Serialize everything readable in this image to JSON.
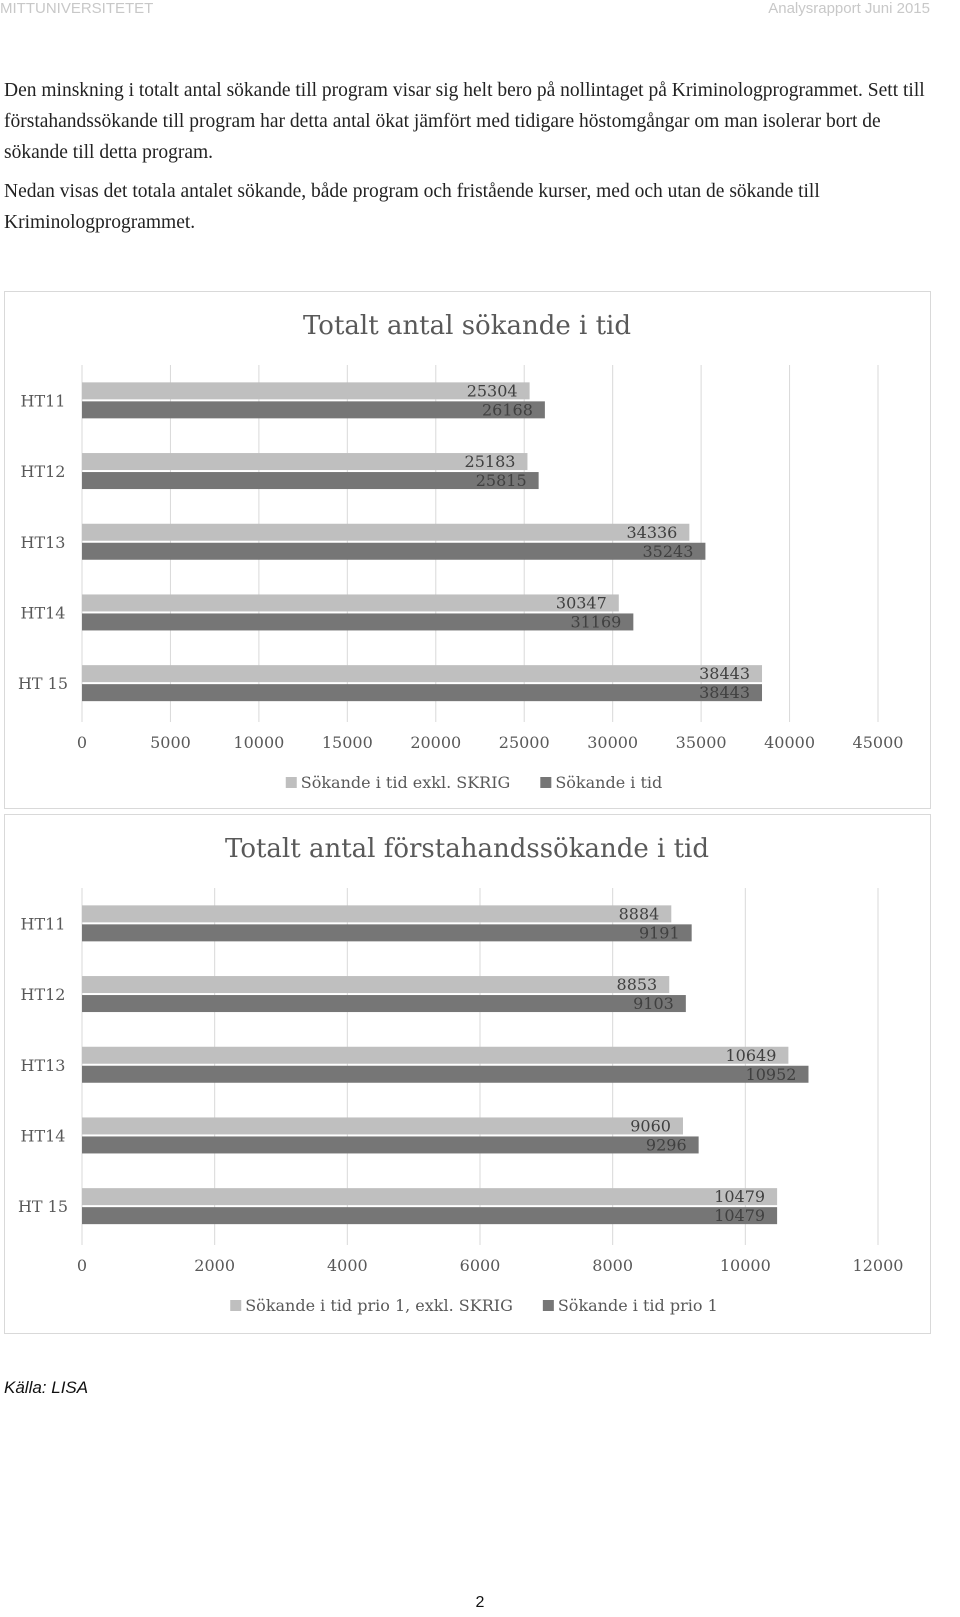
{
  "header": {
    "left": "MITTUNIVERSITETET",
    "right": "Analysrapport Juni 2015"
  },
  "body": {
    "paragraph1": "Den minskning i totalt antal sökande till program visar sig helt bero på nollintaget på Kriminologprogrammet. Sett till förstahandssökande till program har detta antal ökat jämfört med tidigare höstomgångar om man isolerar bort de sökande till detta program.",
    "paragraph2": "Nedan visas det totala antalet sökande, både program och fristående kurser, med och utan de sökande till Kriminologprogrammet."
  },
  "chart_data": [
    {
      "type": "bar",
      "orientation": "horizontal",
      "title": "Totalt antal sökande i tid",
      "categories": [
        "HT11",
        "HT12",
        "HT13",
        "HT14",
        "HT 15"
      ],
      "series": [
        {
          "name": "Sökande i tid exkl. SKRIG",
          "color": "#bfbfbf",
          "values": [
            25304,
            25183,
            34336,
            30347,
            38443
          ]
        },
        {
          "name": "Sökande i tid",
          "color": "#767676",
          "values": [
            26168,
            25815,
            35243,
            31169,
            38443
          ]
        }
      ],
      "xlim": [
        0,
        45000
      ],
      "xticks": [
        "0",
        "5000",
        "10000",
        "15000",
        "20000",
        "25000",
        "30000",
        "35000",
        "40000",
        "45000"
      ],
      "grid": true,
      "legend": "bottom"
    },
    {
      "type": "bar",
      "orientation": "horizontal",
      "title": "Totalt antal förstahandssökande i tid",
      "categories": [
        "HT11",
        "HT12",
        "HT13",
        "HT14",
        "HT 15"
      ],
      "series": [
        {
          "name": "Sökande i tid prio 1, exkl. SKRIG",
          "color": "#bfbfbf",
          "values": [
            8884,
            8853,
            10649,
            9060,
            10479
          ]
        },
        {
          "name": "Sökande i tid prio 1",
          "color": "#767676",
          "values": [
            9191,
            9103,
            10952,
            9296,
            10479
          ]
        }
      ],
      "xlim": [
        0,
        12000
      ],
      "xticks": [
        "0",
        "2000",
        "4000",
        "6000",
        "8000",
        "10000",
        "12000"
      ],
      "grid": true,
      "legend": "bottom"
    }
  ],
  "footer": {
    "source": "Källa: LISA",
    "page_number": "2"
  }
}
